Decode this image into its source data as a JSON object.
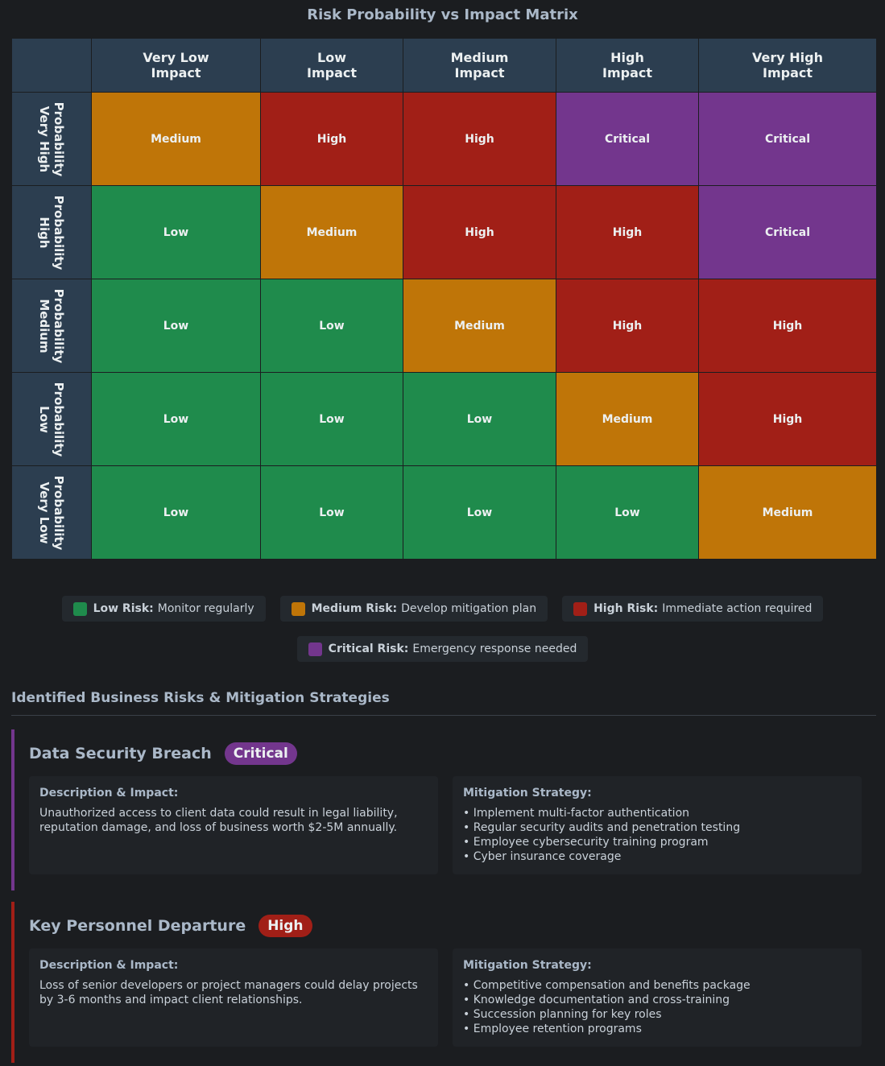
{
  "title": "Risk Probability vs Impact Matrix",
  "colors": {
    "low": "#1f8b4c",
    "medium": "#bf7508",
    "high": "#a11f17",
    "critical": "#73368d",
    "header": "#2c3e50"
  },
  "matrix": {
    "columns": [
      {
        "line1": "Very Low",
        "line2": "Impact"
      },
      {
        "line1": "Low",
        "line2": "Impact"
      },
      {
        "line1": "Medium",
        "line2": "Impact"
      },
      {
        "line1": "High",
        "line2": "Impact"
      },
      {
        "line1": "Very High",
        "line2": "Impact"
      }
    ],
    "rows": [
      {
        "line1": "Probability",
        "line2": "Very High",
        "cells": [
          "Medium",
          "High",
          "High",
          "Critical",
          "Critical"
        ]
      },
      {
        "line1": "Probability",
        "line2": "High",
        "cells": [
          "Low",
          "Medium",
          "High",
          "High",
          "Critical"
        ]
      },
      {
        "line1": "Probability",
        "line2": "Medium",
        "cells": [
          "Low",
          "Low",
          "Medium",
          "High",
          "High"
        ]
      },
      {
        "line1": "Probability",
        "line2": "Low",
        "cells": [
          "Low",
          "Low",
          "Low",
          "Medium",
          "High"
        ]
      },
      {
        "line1": "Probability",
        "line2": "Very Low",
        "cells": [
          "Low",
          "Low",
          "Low",
          "Low",
          "Medium"
        ]
      }
    ]
  },
  "legend": [
    {
      "level": "low",
      "label": "Low Risk:",
      "text": "Monitor regularly"
    },
    {
      "level": "medium",
      "label": "Medium Risk:",
      "text": "Develop mitigation plan"
    },
    {
      "level": "high",
      "label": "High Risk:",
      "text": "Immediate action required"
    },
    {
      "level": "critical",
      "label": "Critical Risk:",
      "text": "Emergency response needed"
    }
  ],
  "section_title": "Identified Business Risks & Mitigation Strategies",
  "risks": [
    {
      "name": "Data Security Breach",
      "badge": "Critical",
      "level": "critical",
      "desc_label": "Description & Impact:",
      "description": "Unauthorized access to client data could result in legal liability, reputation damage, and loss of business worth $2-5M annually.",
      "mitigation_label": "Mitigation Strategy:",
      "mitigation": [
        "Implement multi-factor authentication",
        "Regular security audits and penetration testing",
        "Employee cybersecurity training program",
        "Cyber insurance coverage"
      ]
    },
    {
      "name": "Key Personnel Departure",
      "badge": "High",
      "level": "high",
      "desc_label": "Description & Impact:",
      "description": "Loss of senior developers or project managers could delay projects by 3-6 months and impact client relationships.",
      "mitigation_label": "Mitigation Strategy:",
      "mitigation": [
        "Competitive compensation and benefits package",
        "Knowledge documentation and cross-training",
        "Succession planning for key roles",
        "Employee retention programs"
      ]
    }
  ]
}
